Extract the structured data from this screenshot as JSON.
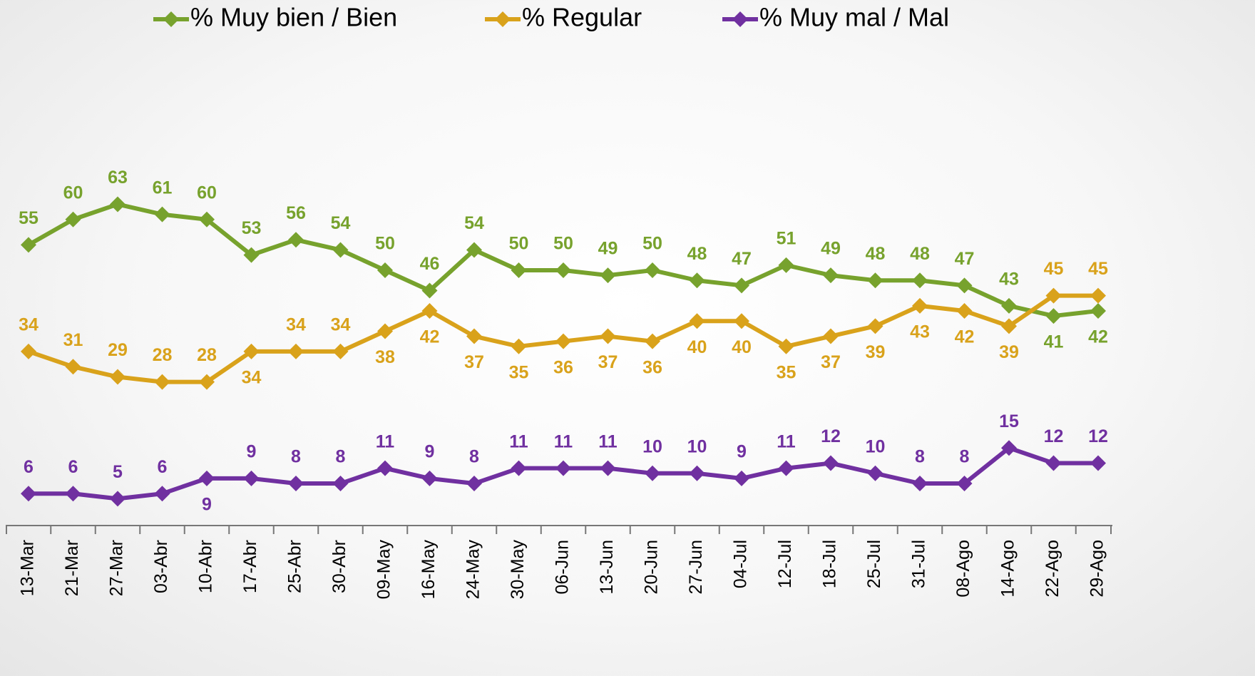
{
  "chart_data": {
    "type": "line",
    "categories": [
      "13-Mar",
      "21-Mar",
      "27-Mar",
      "03-Abr",
      "10-Abr",
      "17-Abr",
      "25-Abr",
      "30-Abr",
      "09-May",
      "16-May",
      "24-May",
      "30-May",
      "06-Jun",
      "13-Jun",
      "20-Jun",
      "27-Jun",
      "04-Jul",
      "12-Jul",
      "18-Jul",
      "25-Jul",
      "31-Jul",
      "08-Ago",
      "14-Ago",
      "22-Ago",
      "29-Ago"
    ],
    "series": [
      {
        "name": "% Muy bien / Bien",
        "color": "#77a22d",
        "values": [
          55,
          60,
          63,
          61,
          60,
          53,
          56,
          54,
          50,
          46,
          54,
          50,
          50,
          49,
          50,
          48,
          47,
          51,
          49,
          48,
          48,
          47,
          43,
          41,
          42
        ]
      },
      {
        "name": "% Regular",
        "color": "#d9a21b",
        "values": [
          34,
          31,
          29,
          28,
          28,
          34,
          34,
          34,
          38,
          42,
          37,
          35,
          36,
          37,
          36,
          40,
          40,
          35,
          37,
          39,
          43,
          42,
          39,
          45,
          45
        ]
      },
      {
        "name": "% Muy mal / Mal",
        "color": "#7030a0",
        "values": [
          6,
          6,
          5,
          6,
          9,
          9,
          8,
          8,
          11,
          9,
          8,
          11,
          11,
          11,
          10,
          10,
          9,
          11,
          12,
          10,
          8,
          8,
          15,
          12,
          12
        ]
      }
    ],
    "ylim": [
      0,
      100
    ],
    "legend": "top"
  }
}
